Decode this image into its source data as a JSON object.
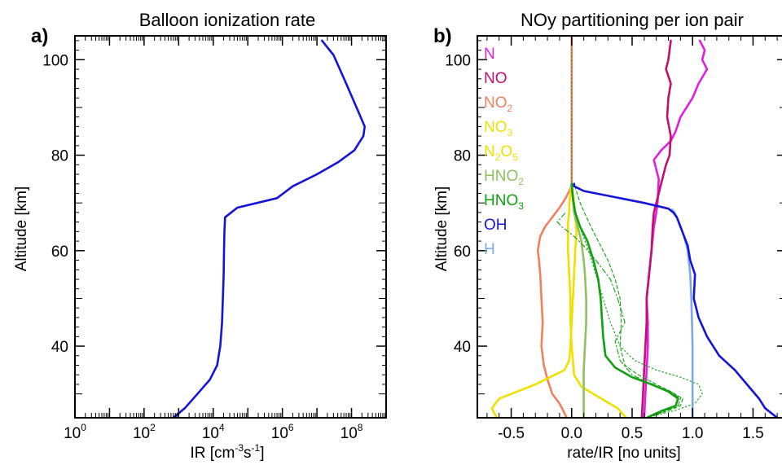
{
  "chart_data": [
    {
      "type": "line",
      "panel_label": "a)",
      "title": "Balloon ionization rate",
      "xlabel": {
        "base": "IR [cm",
        "sup1": "-3",
        "mid": "s",
        "sup2": "-1",
        "end": "]"
      },
      "ylabel": "Altitude [km]",
      "x_scale": "log",
      "xlim": [
        1,
        1000000000
      ],
      "ylim": [
        25,
        105
      ],
      "x_ticks": [
        {
          "v": 1,
          "base": "10",
          "exp": "0"
        },
        {
          "v": 100,
          "base": "10",
          "exp": "2"
        },
        {
          "v": 10000,
          "base": "10",
          "exp": "4"
        },
        {
          "v": 1000000,
          "base": "10",
          "exp": "6"
        },
        {
          "v": 100000000,
          "base": "10",
          "exp": "8"
        }
      ],
      "y_ticks": [
        {
          "v": 40,
          "label": "40"
        },
        {
          "v": 60,
          "label": "60"
        },
        {
          "v": 80,
          "label": "80"
        },
        {
          "v": 100,
          "label": "100"
        }
      ],
      "series": [
        {
          "color": "#1414d8",
          "x": [
            700,
            1500,
            3500,
            8000,
            13000,
            16000,
            18000,
            19000,
            20000,
            20500,
            21000,
            22000,
            50000,
            700000,
            2000000,
            10000000,
            40000000,
            120000000,
            220000000,
            240000000,
            160000000,
            70000000,
            30000000,
            14000000
          ],
          "y": [
            25,
            27,
            30,
            33,
            36,
            40,
            45,
            50,
            55,
            60,
            64,
            67,
            69,
            71,
            73.5,
            76,
            78.5,
            81,
            84,
            86,
            89,
            95,
            101,
            104
          ]
        }
      ]
    },
    {
      "type": "line",
      "panel_label": "b)",
      "title": "NOy partitioning per ion pair",
      "xlabel": "rate/IR [no units]",
      "ylabel": "Altitude [km]",
      "xlim": [
        -0.78,
        1.78
      ],
      "ylim": [
        25,
        105
      ],
      "x_ticks": [
        {
          "v": -0.5,
          "label": "-0.5"
        },
        {
          "v": 0,
          "label": "0.0"
        },
        {
          "v": 0.5,
          "label": "0.5"
        },
        {
          "v": 1,
          "label": "1.0"
        },
        {
          "v": 1.5,
          "label": "1.5"
        }
      ],
      "y_ticks": [
        {
          "v": 40,
          "label": "40"
        },
        {
          "v": 60,
          "label": "60"
        },
        {
          "v": 80,
          "label": "80"
        },
        {
          "v": 100,
          "label": "100"
        }
      ],
      "legend_position": "top-left",
      "legend": [
        {
          "color": "#e020e0",
          "text": "N",
          "sub": "",
          "tail": ""
        },
        {
          "color": "#c01070",
          "text": "NO",
          "sub": "",
          "tail": ""
        },
        {
          "color": "#f08060",
          "text": "NO",
          "sub": "2",
          "tail": ""
        },
        {
          "color": "#f0e000",
          "text": "NO",
          "sub": "3",
          "tail": ""
        },
        {
          "color": "#f0e000",
          "text": "N",
          "sub": "2",
          "tail": "O",
          "sub2": "5"
        },
        {
          "color": "#90c060",
          "text": "HNO",
          "sub": "2",
          "tail": ""
        },
        {
          "color": "#10a010",
          "text": "HNO",
          "sub": "3",
          "tail": ""
        },
        {
          "color": "#1414d8",
          "text": "OH",
          "sub": "",
          "tail": ""
        },
        {
          "color": "#80a8e8",
          "text": "H",
          "sub": "",
          "tail": ""
        }
      ],
      "series": [
        {
          "color": "#e020e0",
          "x": [
            0.6,
            0.61,
            0.62,
            0.63,
            0.63,
            0.62,
            0.64,
            0.66,
            0.68,
            0.7,
            0.71,
            0.72,
            0.69,
            0.68,
            0.74,
            0.82,
            0.86,
            0.9,
            0.95,
            1.0,
            1.05,
            1.12,
            1.08,
            1.1,
            1.06
          ],
          "y": [
            25,
            30,
            35,
            40,
            45,
            50,
            55,
            60,
            65,
            68,
            70,
            75,
            78,
            79,
            81,
            83,
            85,
            88,
            90,
            92,
            95,
            98,
            100,
            102,
            104
          ]
        },
        {
          "color": "#c01070",
          "x": [
            0.58,
            0.59,
            0.6,
            0.61,
            0.62,
            0.62,
            0.64,
            0.66,
            0.67,
            0.68,
            0.7,
            0.72,
            0.74,
            0.76,
            0.78,
            0.81,
            0.82,
            0.79,
            0.8,
            0.82,
            0.78,
            0.8,
            0.81,
            0.82
          ],
          "y": [
            25,
            30,
            35,
            40,
            45,
            50,
            55,
            60,
            65,
            68,
            70,
            72,
            74,
            76,
            78,
            80,
            84,
            88,
            92,
            95,
            98,
            100,
            102,
            104
          ]
        },
        {
          "color": "#f08060",
          "x": [
            -0.04,
            -0.1,
            -0.16,
            -0.2,
            -0.23,
            -0.25,
            -0.24,
            -0.25,
            -0.26,
            -0.27,
            -0.28,
            -0.26,
            -0.22,
            -0.16,
            -0.1,
            -0.05,
            -0.01,
            0,
            0,
            0
          ],
          "y": [
            25,
            28,
            30,
            33,
            36,
            40,
            45,
            50,
            55,
            58,
            60,
            63,
            65,
            67,
            69,
            71,
            73,
            74,
            90,
            105
          ]
        },
        {
          "color": "#f0e000",
          "x": [
            0.45,
            0.38,
            0.28,
            0.18,
            0.08,
            0.02,
            0,
            -0.01,
            -0.01,
            -0.02,
            -0.03,
            -0.03,
            -0.03,
            -0.02,
            -0.02,
            -0.01,
            0
          ],
          "y": [
            25,
            27,
            28.5,
            30,
            31.5,
            34,
            40,
            45,
            50,
            55,
            60,
            63,
            66,
            68,
            70,
            72,
            74
          ]
        },
        {
          "color": "#f0e000",
          "x": [
            -0.62,
            -0.66,
            -0.6,
            -0.45,
            -0.3,
            -0.18,
            -0.06,
            -0.02,
            -0.01,
            0,
            0.01,
            0.02,
            0.03,
            0.04,
            0.03,
            0.02,
            0.01,
            0
          ],
          "y": [
            25,
            27,
            29,
            30.5,
            32,
            33.5,
            35,
            37,
            40,
            45,
            50,
            55,
            60,
            64,
            67,
            70,
            72,
            74
          ]
        },
        {
          "color": "#90c060",
          "x": [
            0.1,
            0.1,
            0.1,
            0.11,
            0.12,
            0.12,
            0.11,
            0.1,
            0.09,
            0.08,
            0.06,
            0.04,
            0.02,
            0.01,
            0
          ],
          "y": [
            25,
            30,
            35,
            40,
            45,
            50,
            55,
            58,
            60,
            62,
            64,
            66,
            68,
            71,
            74
          ]
        },
        {
          "color": "#10a010",
          "x": [
            0.62,
            0.75,
            0.86,
            0.88,
            0.8,
            0.66,
            0.5,
            0.36,
            0.28,
            0.26,
            0.25,
            0.24,
            0.22,
            0.18,
            0.13,
            0.07,
            0.03,
            0.01,
            0
          ],
          "y": [
            25,
            26.5,
            27.5,
            29,
            30.5,
            32,
            33.5,
            35.5,
            38,
            42,
            46,
            50,
            54,
            58,
            62,
            65,
            68,
            71,
            74
          ]
        },
        {
          "color": "#10a010",
          "width": 1.1,
          "dash": "4,3",
          "x": [
            0.62,
            0.8,
            0.9,
            0.92,
            0.82,
            0.7,
            0.55,
            0.44,
            0.4,
            0.41,
            0.4,
            0.36,
            0.3,
            0.22,
            0.14,
            0.07,
            0.02
          ],
          "y": [
            25,
            26.5,
            27.5,
            29,
            30.5,
            32,
            34,
            36,
            40,
            45,
            50,
            54,
            58,
            62,
            66,
            70,
            74
          ]
        },
        {
          "color": "#10a010",
          "width": 1.1,
          "dash": "6,3,1.5,3",
          "x": [
            0.62,
            0.78,
            0.88,
            0.9,
            0.82,
            0.66,
            0.5,
            0.4,
            0.36,
            0.44,
            0.38,
            0.32,
            0.2,
            0.1,
            0.02,
            -0.08,
            -0.12,
            -0.05
          ],
          "y": [
            25,
            26.5,
            27.5,
            29,
            30.5,
            32,
            34,
            37,
            41,
            45,
            50,
            54,
            58,
            61,
            63,
            65,
            66,
            68
          ]
        },
        {
          "color": "#10a010",
          "width": 1.1,
          "dash": "1.5,3",
          "x": [
            0.62,
            0.85,
            1.02,
            1.08,
            1.05,
            0.9,
            0.7,
            0.52,
            0.4,
            0.32,
            0.26,
            0.2,
            0.14,
            0.08,
            0.04,
            0.01,
            0,
            0
          ],
          "y": [
            25,
            26.5,
            28,
            30,
            32,
            33.5,
            35,
            37,
            40,
            45,
            50,
            55,
            60,
            64,
            67,
            70,
            72,
            105
          ]
        },
        {
          "color": "#80a8e8",
          "x": [
            1,
            1,
            1,
            1,
            0.995,
            0.99,
            0.98,
            0.96,
            0.93,
            0.9,
            0.87,
            0.85,
            0.83
          ],
          "y": [
            25,
            30,
            35,
            40,
            45,
            50,
            55,
            60,
            63,
            65,
            67,
            68,
            68.6
          ]
        },
        {
          "color": "#1414d8",
          "x": [
            1.7,
            1.6,
            1.55,
            1.45,
            1.35,
            1.22,
            1.12,
            1.05,
            1.01,
            1.02,
            0.98,
            0.96,
            0.93,
            0.9,
            0.87,
            0.84,
            0.8,
            0.6,
            0.3,
            0.1,
            0.02,
            0.02
          ],
          "y": [
            25,
            27,
            29,
            32,
            35,
            38,
            42,
            46,
            50,
            55,
            58,
            61,
            63,
            65,
            67,
            68,
            68.8,
            70,
            71.5,
            72.5,
            73.5,
            74
          ]
        }
      ]
    }
  ]
}
